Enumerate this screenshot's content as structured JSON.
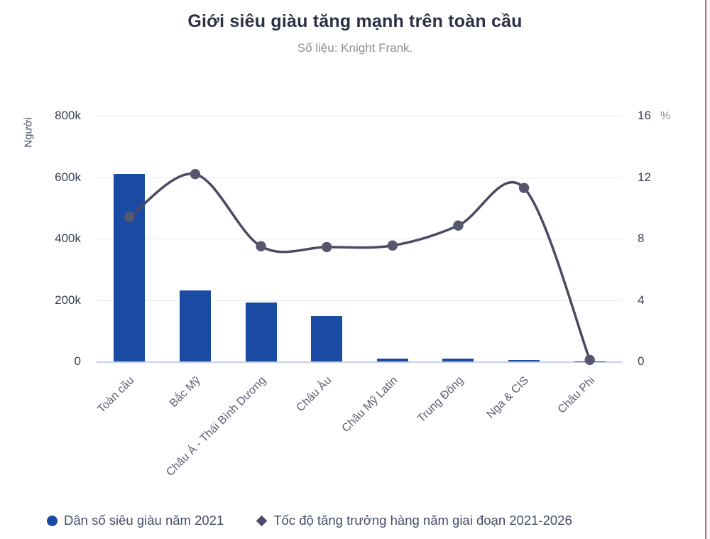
{
  "header": {
    "title": "Giới siêu giàu tăng mạnh trên toàn cầu",
    "subtitle": "Số liệu: Knight Frank."
  },
  "chart_data": {
    "type": "combo-bar-line",
    "categories": [
      "Toàn cầu",
      "Bắc Mỹ",
      "Châu Á - Thái Bình Dương",
      "Châu Âu",
      "Châu Mỹ Latin",
      "Trung Đông",
      "Nga & CIS",
      "Châu Phi"
    ],
    "series": [
      {
        "name": "Dân số siêu giàu năm 2021",
        "type": "bar",
        "axis": "left",
        "color": "#1a4ba3",
        "values": [
          610000,
          231000,
          192000,
          149000,
          9000,
          9000,
          5000,
          1000
        ]
      },
      {
        "name": "Tốc độ tăng trưởng hàng năm giai đoạn 2021-2026",
        "type": "line",
        "axis": "right",
        "color": "#4a4a65",
        "marker_color": "#57566f",
        "values": [
          9.4,
          12.2,
          7.5,
          7.45,
          7.55,
          8.85,
          11.3,
          0.1
        ]
      }
    ],
    "left_axis": {
      "title": "Người",
      "tick_labels": [
        "0",
        "200k",
        "400k",
        "600k",
        "800k"
      ],
      "tick_values": [
        0,
        200000,
        400000,
        600000,
        800000
      ],
      "max": 800000
    },
    "right_axis": {
      "title": "%",
      "tick_labels": [
        "0",
        "4",
        "8",
        "12",
        "16"
      ],
      "tick_values": [
        0,
        4,
        8,
        12,
        16
      ],
      "max": 16
    },
    "grid": true,
    "legend_position": "bottom"
  },
  "legend": {
    "items": [
      {
        "label": "Dân số siêu giàu năm 2021",
        "marker": "circle",
        "color": "#1a4ba3"
      },
      {
        "label": "Tốc độ tăng trưởng hàng năm giai đoạn 2021-2026",
        "marker": "diamond",
        "color": "#4d4d6b"
      }
    ]
  },
  "colors": {
    "bar": "#1a4ba3",
    "line": "#4a4a65",
    "grid": "#e9e9ed",
    "zero_line": "#c7d2ea",
    "edge_accent": "#bb4b3f"
  }
}
